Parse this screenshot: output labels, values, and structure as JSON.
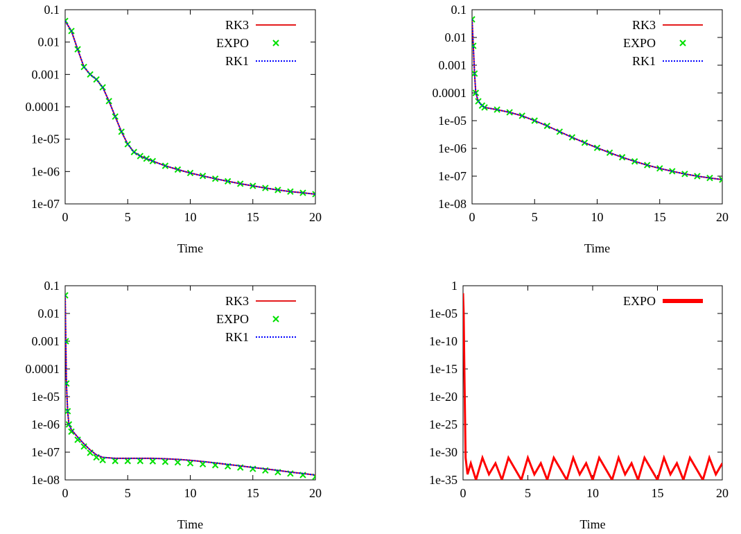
{
  "chart_data": [
    {
      "type": "line",
      "title": "",
      "xlabel": "Time",
      "ylabel": "",
      "xlim": [
        0,
        20
      ],
      "ylim": [
        1e-07,
        0.1
      ],
      "yscale": "log",
      "xticks": [
        "0",
        "5",
        "10",
        "15",
        "20"
      ],
      "yticks": [
        "1e-07",
        "1e-06",
        "1e-05",
        "0.0001",
        "0.001",
        "0.01",
        "0.1"
      ],
      "legend": "top-right",
      "series": [
        {
          "name": "RK3",
          "style": "line",
          "color": "#e41a1c",
          "x": [
            0,
            0.5,
            1,
            1.5,
            2,
            2.5,
            3,
            3.5,
            4,
            4.5,
            5,
            5.5,
            6,
            6.5,
            7,
            8,
            9,
            10,
            11,
            12,
            13,
            14,
            15,
            16,
            17,
            18,
            19,
            20
          ],
          "y": [
            0.045,
            0.022,
            0.006,
            0.0017,
            0.001,
            0.0007,
            0.0004,
            0.00015,
            5e-05,
            1.7e-05,
            7e-06,
            4e-06,
            3e-06,
            2.5e-06,
            2.1e-06,
            1.5e-06,
            1.15e-06,
            9e-07,
            7.3e-07,
            6e-07,
            5e-07,
            4.2e-07,
            3.6e-07,
            3.1e-07,
            2.7e-07,
            2.4e-07,
            2.2e-07,
            2e-07
          ]
        },
        {
          "name": "EXPO",
          "style": "points",
          "color": "#00e000",
          "x": [
            0,
            0.5,
            1,
            1.5,
            2,
            2.5,
            3,
            3.5,
            4,
            4.5,
            5,
            5.5,
            6,
            6.5,
            7,
            8,
            9,
            10,
            11,
            12,
            13,
            14,
            15,
            16,
            17,
            18,
            19,
            20
          ],
          "y": [
            0.045,
            0.022,
            0.006,
            0.0017,
            0.001,
            0.0007,
            0.0004,
            0.00015,
            5e-05,
            1.7e-05,
            7e-06,
            4e-06,
            3e-06,
            2.5e-06,
            2.1e-06,
            1.5e-06,
            1.15e-06,
            9e-07,
            7.3e-07,
            6e-07,
            5e-07,
            4.2e-07,
            3.6e-07,
            3.1e-07,
            2.7e-07,
            2.4e-07,
            2.2e-07,
            2e-07
          ]
        },
        {
          "name": "RK1",
          "style": "dotted",
          "color": "#0000ff",
          "x": [
            0,
            0.5,
            1,
            1.5,
            2,
            2.5,
            3,
            3.5,
            4,
            4.5,
            5,
            5.5,
            6,
            6.5,
            7,
            8,
            9,
            10,
            11,
            12,
            13,
            14,
            15,
            16,
            17,
            18,
            19,
            20
          ],
          "y": [
            0.045,
            0.022,
            0.006,
            0.0017,
            0.001,
            0.0007,
            0.0004,
            0.00015,
            5e-05,
            1.7e-05,
            7e-06,
            4e-06,
            3e-06,
            2.5e-06,
            2.1e-06,
            1.5e-06,
            1.15e-06,
            9e-07,
            7.3e-07,
            6e-07,
            5e-07,
            4.2e-07,
            3.6e-07,
            3.1e-07,
            2.7e-07,
            2.4e-07,
            2.2e-07,
            2e-07
          ]
        }
      ]
    },
    {
      "type": "line",
      "title": "",
      "xlabel": "Time",
      "ylabel": "",
      "xlim": [
        0,
        20
      ],
      "ylim": [
        1e-08,
        0.1
      ],
      "yscale": "log",
      "xticks": [
        "0",
        "5",
        "10",
        "15",
        "20"
      ],
      "yticks": [
        "1e-08",
        "1e-07",
        "1e-06",
        "1e-05",
        "0.0001",
        "0.001",
        "0.01",
        "0.1"
      ],
      "legend": "top-right",
      "series": [
        {
          "name": "RK3",
          "style": "line",
          "color": "#e41a1c",
          "x": [
            0,
            0.1,
            0.2,
            0.3,
            0.5,
            0.8,
            1,
            2,
            3,
            4,
            5,
            6,
            7,
            8,
            9,
            10,
            11,
            12,
            13,
            14,
            15,
            16,
            17,
            18,
            19,
            20
          ],
          "y": [
            0.045,
            0.005,
            0.0005,
            0.0001,
            5e-05,
            3.5e-05,
            3e-05,
            2.5e-05,
            2e-05,
            1.5e-05,
            1e-05,
            6.5e-06,
            4e-06,
            2.5e-06,
            1.6e-06,
            1.05e-06,
            7e-07,
            4.8e-07,
            3.4e-07,
            2.5e-07,
            1.9e-07,
            1.5e-07,
            1.2e-07,
            1e-07,
            8.6e-08,
            7.5e-08
          ]
        },
        {
          "name": "EXPO",
          "style": "points",
          "color": "#00e000",
          "x": [
            0,
            0.1,
            0.2,
            0.3,
            0.5,
            0.8,
            1,
            2,
            3,
            4,
            5,
            6,
            7,
            8,
            9,
            10,
            11,
            12,
            13,
            14,
            15,
            16,
            17,
            18,
            19,
            20
          ],
          "y": [
            0.045,
            0.005,
            0.0005,
            0.0001,
            5e-05,
            3.5e-05,
            3e-05,
            2.5e-05,
            2e-05,
            1.5e-05,
            1e-05,
            6.5e-06,
            4e-06,
            2.5e-06,
            1.6e-06,
            1.05e-06,
            7e-07,
            4.8e-07,
            3.4e-07,
            2.5e-07,
            1.9e-07,
            1.5e-07,
            1.2e-07,
            1e-07,
            8.6e-08,
            7.5e-08
          ]
        },
        {
          "name": "RK1",
          "style": "dotted",
          "color": "#0000ff",
          "x": [
            0,
            0.1,
            0.2,
            0.3,
            0.5,
            0.8,
            1,
            2,
            3,
            4,
            5,
            6,
            7,
            8,
            9,
            10,
            11,
            12,
            13,
            14,
            15,
            16,
            17,
            18,
            19,
            20
          ],
          "y": [
            0.045,
            0.005,
            0.0005,
            0.0001,
            5e-05,
            3.5e-05,
            3e-05,
            2.5e-05,
            2e-05,
            1.5e-05,
            1e-05,
            6.5e-06,
            4e-06,
            2.5e-06,
            1.6e-06,
            1.05e-06,
            7e-07,
            4.8e-07,
            3.4e-07,
            2.5e-07,
            1.9e-07,
            1.5e-07,
            1.2e-07,
            1e-07,
            8.6e-08,
            7.5e-08
          ]
        }
      ]
    },
    {
      "type": "line",
      "title": "",
      "xlabel": "Time",
      "ylabel": "",
      "xlim": [
        0,
        20
      ],
      "ylim": [
        1e-08,
        0.1
      ],
      "yscale": "log",
      "xticks": [
        "0",
        "5",
        "10",
        "15",
        "20"
      ],
      "yticks": [
        "1e-08",
        "1e-07",
        "1e-06",
        "1e-05",
        "0.0001",
        "0.001",
        "0.01",
        "0.1"
      ],
      "legend": "top-right",
      "series": [
        {
          "name": "RK3",
          "style": "line",
          "color": "#e41a1c",
          "x": [
            0,
            0.05,
            0.1,
            0.2,
            0.3,
            0.5,
            1,
            1.5,
            2,
            2.5,
            3,
            4,
            5,
            6,
            7,
            8,
            9,
            10,
            11,
            12,
            13,
            14,
            15,
            16,
            17,
            18,
            19,
            20
          ],
          "y": [
            0.045,
            0.001,
            3e-05,
            3e-06,
            1e-06,
            6.5e-07,
            3.5e-07,
            2e-07,
            1.2e-07,
            8e-08,
            6.5e-08,
            6e-08,
            6e-08,
            6e-08,
            6e-08,
            5.8e-08,
            5.5e-08,
            5.1e-08,
            4.6e-08,
            4.1e-08,
            3.6e-08,
            3.2e-08,
            2.8e-08,
            2.5e-08,
            2.2e-08,
            1.9e-08,
            1.7e-08,
            1.5e-08
          ]
        },
        {
          "name": "EXPO",
          "style": "points",
          "color": "#00e000",
          "x": [
            0,
            0.05,
            0.1,
            0.2,
            0.3,
            0.5,
            1,
            1.5,
            2,
            2.5,
            3,
            4,
            5,
            6,
            7,
            8,
            9,
            10,
            11,
            12,
            13,
            14,
            15,
            16,
            17,
            18,
            19,
            20
          ],
          "y": [
            0.045,
            0.001,
            3e-05,
            3e-06,
            1e-06,
            5.5e-07,
            2.8e-07,
            1.6e-07,
            9.5e-08,
            6.5e-08,
            5.2e-08,
            4.8e-08,
            4.8e-08,
            4.8e-08,
            4.7e-08,
            4.5e-08,
            4.3e-08,
            4e-08,
            3.7e-08,
            3.4e-08,
            3.1e-08,
            2.8e-08,
            2.5e-08,
            2.2e-08,
            1.9e-08,
            1.7e-08,
            1.5e-08,
            1.3e-08
          ]
        },
        {
          "name": "RK1",
          "style": "dotted",
          "color": "#0000ff",
          "x": [
            0,
            0.05,
            0.1,
            0.2,
            0.3,
            0.5,
            1,
            1.5,
            2,
            2.5,
            3,
            4,
            5,
            6,
            7,
            8,
            9,
            10,
            11,
            12,
            13,
            14,
            15,
            16,
            17,
            18,
            19,
            20
          ],
          "y": [
            0.045,
            0.001,
            3e-05,
            3e-06,
            1e-06,
            6.5e-07,
            3.5e-07,
            2e-07,
            1.2e-07,
            8e-08,
            6.5e-08,
            6e-08,
            6e-08,
            6e-08,
            6e-08,
            5.8e-08,
            5.5e-08,
            5.1e-08,
            4.6e-08,
            4.1e-08,
            3.6e-08,
            3.2e-08,
            2.8e-08,
            2.5e-08,
            2.2e-08,
            1.9e-08,
            1.7e-08,
            1.5e-08
          ]
        }
      ]
    },
    {
      "type": "line",
      "title": "",
      "xlabel": "Time",
      "ylabel": "",
      "xlim": [
        0,
        20
      ],
      "ylim": [
        1e-35,
        1
      ],
      "yscale": "log",
      "xticks": [
        "0",
        "5",
        "10",
        "15",
        "20"
      ],
      "yticks": [
        "1e-35",
        "1e-30",
        "1e-25",
        "1e-20",
        "1e-15",
        "1e-10",
        "1e-05",
        "1"
      ],
      "legend": "top-right",
      "series": [
        {
          "name": "EXPO",
          "style": "thick-line",
          "color": "#ff0000",
          "x": [
            0,
            0.05,
            0.1,
            0.2,
            0.35,
            0.6,
            1.0,
            1.5,
            2.0,
            2.5,
            3.0,
            3.5,
            4.0,
            4.5,
            5.0,
            5.5,
            6.0,
            6.5,
            7.0,
            7.5,
            8.0,
            8.5,
            9.0,
            9.5,
            10.0,
            10.5,
            11.0,
            11.5,
            12.0,
            12.5,
            13.0,
            13.5,
            14.0,
            14.5,
            15.0,
            15.5,
            16.0,
            16.5,
            17.0,
            17.5,
            18.0,
            18.5,
            19.0,
            19.5,
            20.0
          ],
          "y": [
            0.045,
            1e-05,
            1e-15,
            1e-31,
            1e-34,
            1e-32,
            1e-35,
            1e-31,
            1e-34,
            1e-32,
            1e-35,
            1e-31,
            1e-33,
            1e-35,
            1e-31,
            1e-34,
            1e-32,
            1e-35,
            1e-31,
            1e-33,
            1e-35,
            1e-31,
            1e-34,
            1e-32,
            1e-35,
            1e-31,
            1e-33,
            1e-35,
            1e-31,
            1e-34,
            1e-32,
            1e-35,
            1e-31,
            1e-33,
            1e-35,
            1e-31,
            1e-34,
            1e-32,
            1e-35,
            1e-31,
            1e-33,
            1e-35,
            1e-31,
            1e-34,
            1e-32
          ]
        }
      ]
    }
  ]
}
